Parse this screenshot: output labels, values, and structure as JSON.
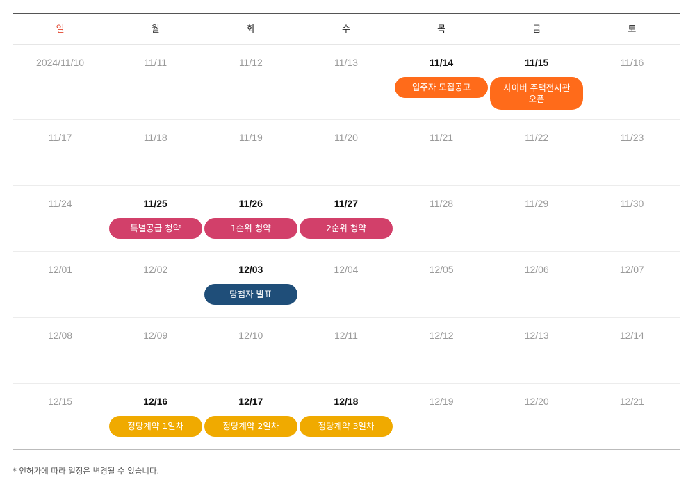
{
  "weekdays": [
    "일",
    "월",
    "화",
    "수",
    "목",
    "금",
    "토"
  ],
  "weeks": [
    {
      "days": [
        {
          "date": "2024/11/10"
        },
        {
          "date": "11/11"
        },
        {
          "date": "11/12"
        },
        {
          "date": "11/13"
        },
        {
          "date": "11/14",
          "event": "입주자 모집공고"
        },
        {
          "date": "11/15",
          "event": "사이버 주택전시관 오픈"
        },
        {
          "date": "11/16"
        }
      ]
    },
    {
      "days": [
        {
          "date": "11/17"
        },
        {
          "date": "11/18"
        },
        {
          "date": "11/19"
        },
        {
          "date": "11/20"
        },
        {
          "date": "11/21"
        },
        {
          "date": "11/22"
        },
        {
          "date": "11/23"
        }
      ]
    },
    {
      "days": [
        {
          "date": "11/24"
        },
        {
          "date": "11/25",
          "event": "특별공급 청약"
        },
        {
          "date": "11/26",
          "event": "1순위 청약"
        },
        {
          "date": "11/27",
          "event": "2순위 청약"
        },
        {
          "date": "11/28"
        },
        {
          "date": "11/29"
        },
        {
          "date": "11/30"
        }
      ]
    },
    {
      "days": [
        {
          "date": "12/01"
        },
        {
          "date": "12/02"
        },
        {
          "date": "12/03",
          "event": "당첨자 발표"
        },
        {
          "date": "12/04"
        },
        {
          "date": "12/05"
        },
        {
          "date": "12/06"
        },
        {
          "date": "12/07"
        }
      ]
    },
    {
      "days": [
        {
          "date": "12/08"
        },
        {
          "date": "12/09"
        },
        {
          "date": "12/10"
        },
        {
          "date": "12/11"
        },
        {
          "date": "12/12"
        },
        {
          "date": "12/13"
        },
        {
          "date": "12/14"
        }
      ]
    },
    {
      "days": [
        {
          "date": "12/15"
        },
        {
          "date": "12/16",
          "event": "정당계약 1일차"
        },
        {
          "date": "12/17",
          "event": "정당계약 2일차"
        },
        {
          "date": "12/18",
          "event": "정당계약 3일차"
        },
        {
          "date": "12/19"
        },
        {
          "date": "12/20"
        },
        {
          "date": "12/21"
        }
      ]
    }
  ],
  "colors": {
    "sunday": "#e2462f",
    "orange_event": "#ff6b1a",
    "pink_event": "#d2406a",
    "navy_event": "#1f4e79",
    "yellow_event": "#f0aa00"
  },
  "note": "* 인허가에 따라 일정은 변경될 수 있습니다."
}
